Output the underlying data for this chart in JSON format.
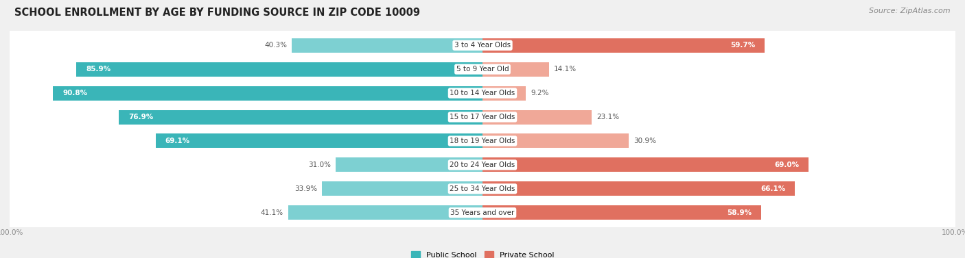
{
  "title": "SCHOOL ENROLLMENT BY AGE BY FUNDING SOURCE IN ZIP CODE 10009",
  "source": "Source: ZipAtlas.com",
  "categories": [
    "3 to 4 Year Olds",
    "5 to 9 Year Old",
    "10 to 14 Year Olds",
    "15 to 17 Year Olds",
    "18 to 19 Year Olds",
    "20 to 24 Year Olds",
    "25 to 34 Year Olds",
    "35 Years and over"
  ],
  "public_values": [
    40.3,
    85.9,
    90.8,
    76.9,
    69.1,
    31.0,
    33.9,
    41.1
  ],
  "private_values": [
    59.7,
    14.1,
    9.2,
    23.1,
    30.9,
    69.0,
    66.1,
    58.9
  ],
  "public_color_strong": "#3ab5b8",
  "public_color_light": "#7dd0d2",
  "private_color_strong": "#e07060",
  "private_color_light": "#f0a898",
  "public_label": "Public School",
  "private_label": "Private School",
  "background_color": "#f0f0f0",
  "row_background_color": "#ffffff",
  "title_fontsize": 10.5,
  "source_fontsize": 8,
  "bar_label_fontsize": 7.5,
  "category_fontsize": 7.5,
  "legend_fontsize": 8,
  "axis_label_fontsize": 7.5
}
